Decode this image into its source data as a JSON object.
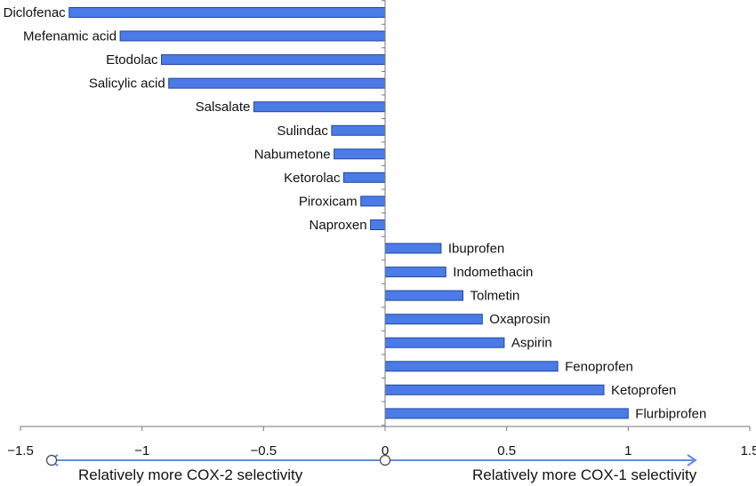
{
  "chart_data": {
    "type": "bar",
    "orientation": "horizontal",
    "categories": [
      "Diclofenac",
      "Mefenamic acid",
      "Etodolac",
      "Salicylic acid",
      "Salsalate",
      "Sulindac",
      "Nabumetone",
      "Ketorolac",
      "Piroxicam",
      "Naproxen",
      "Ibuprofen",
      "Indomethacin",
      "Tolmetin",
      "Oxaprosin",
      "Aspirin",
      "Fenoprofen",
      "Ketoprofen",
      "Flurbiprofen"
    ],
    "values": [
      -1.3,
      -1.09,
      -0.92,
      -0.89,
      -0.54,
      -0.22,
      -0.21,
      -0.17,
      -0.1,
      -0.06,
      0.23,
      0.25,
      0.32,
      0.4,
      0.49,
      0.71,
      0.9,
      1.0
    ],
    "xlim": [
      -1.5,
      1.5
    ],
    "x_ticks": [
      "−1.5",
      "−1",
      "−0.5",
      "0",
      "0.5",
      "1",
      "1.5"
    ],
    "x_tick_values": [
      -1.5,
      -1,
      -0.5,
      0,
      0.5,
      1,
      1.5
    ],
    "bar_color": "#4a7be6",
    "bar_edge_color": "#23479e",
    "grid": false,
    "legend": false
  },
  "annotations": {
    "left_label": "Relatively more COX-2 selectivity",
    "right_label": "Relatively more COX-1 selectivity",
    "arrow_color": "#5b8fe0"
  }
}
